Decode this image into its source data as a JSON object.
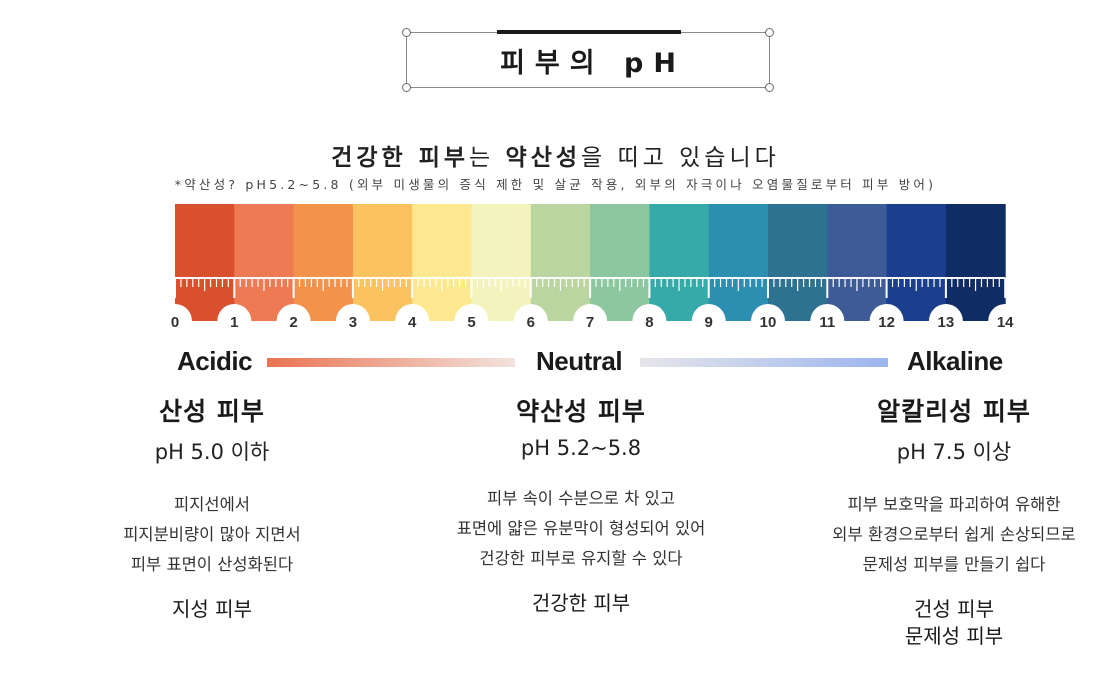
{
  "title": "피부의 pH",
  "headline": {
    "segments": [
      {
        "text": "건강한 피부",
        "bold": true
      },
      {
        "text": "는 ",
        "bold": false
      },
      {
        "text": "약산성",
        "bold": true
      },
      {
        "text": "을 띠고 있습니다",
        "bold": false
      }
    ]
  },
  "note": "*약산성? pH5.2~5.8 (외부 미생물의 증식 제한 및 살균 작용, 외부의 자극이나 오염물질로부터 피부 방어)",
  "chart_data": {
    "type": "table",
    "scale_min": 0,
    "scale_max": 14,
    "tick_labels": [
      "0",
      "1",
      "2",
      "3",
      "4",
      "5",
      "6",
      "7",
      "8",
      "9",
      "10",
      "11",
      "12",
      "13",
      "14"
    ],
    "band_colors": [
      "#d9502f",
      "#ee7a53",
      "#f3924b",
      "#fbc35f",
      "#fde88f",
      "#f3f3bd",
      "#bad59f",
      "#8cc79f",
      "#35aaa8",
      "#2c8eb1",
      "#2d7391",
      "#3d5c97",
      "#1b3f8c",
      "#0f2c65"
    ]
  },
  "spectrum": {
    "acidic": {
      "label": "Acidic",
      "color": "#d94f33"
    },
    "neutral": {
      "label": "Neutral",
      "color": "#8e8e8e"
    },
    "alkaline": {
      "label": "Alkaline",
      "color": "#2e4a95"
    }
  },
  "columns": [
    {
      "name": "산성 피부",
      "range": "pH 5.0 이하",
      "desc": [
        "피지선에서",
        "피지분비량이 많아 지면서",
        "피부 표면이 산성화된다"
      ],
      "types": [
        "지성 피부"
      ]
    },
    {
      "name": "약산성 피부",
      "range": "pH 5.2~5.8",
      "desc": [
        "피부 속이 수분으로 차 있고",
        "표면에 얇은 유분막이 형성되어 있어",
        "건강한 피부로 유지할 수 있다"
      ],
      "types": [
        "건강한 피부"
      ]
    },
    {
      "name": "알칼리성 피부",
      "range": "pH 7.5 이상",
      "desc": [
        "피부 보호막을 파괴하여 유해한",
        "외부 환경으로부터 쉽게 손상되므로",
        "문제성 피부를 만들기 쉽다"
      ],
      "types": [
        "건성 피부",
        "문제성 피부"
      ]
    }
  ]
}
